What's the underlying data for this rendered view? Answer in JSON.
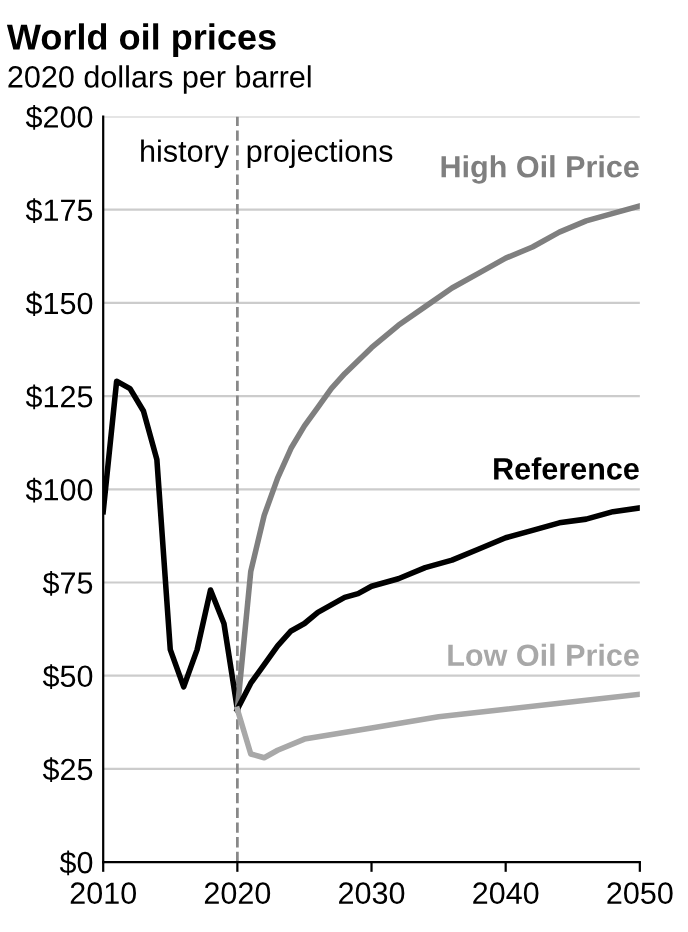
{
  "chart_data": {
    "type": "line",
    "title": "World oil prices",
    "subtitle": "2020 dollars per barrel",
    "series": [
      {
        "color": "#000000",
        "x": [
          2010,
          2011,
          2012,
          2013,
          2014,
          2015,
          2016,
          2017,
          2018,
          2019,
          2020
        ],
        "values": [
          94,
          129,
          127,
          121,
          108,
          57,
          47,
          57,
          73,
          64,
          41
        ]
      },
      {
        "name": "High Oil Price",
        "color": "#7f7f7f",
        "x": [
          2020,
          2021,
          2022,
          2023,
          2024,
          2025,
          2026,
          2027,
          2028,
          2030,
          2032,
          2034,
          2036,
          2038,
          2040,
          2042,
          2044,
          2046,
          2048,
          2050
        ],
        "values": [
          41,
          78,
          93,
          103,
          111,
          117,
          122,
          127,
          131,
          138,
          144,
          149,
          154,
          158,
          162,
          165,
          169,
          172,
          174,
          176
        ]
      },
      {
        "name": "Reference",
        "color": "#000000",
        "x": [
          2020,
          2021,
          2022,
          2023,
          2024,
          2025,
          2026,
          2027,
          2028,
          2029,
          2030,
          2032,
          2034,
          2036,
          2038,
          2040,
          2042,
          2044,
          2046,
          2048,
          2050
        ],
        "values": [
          41,
          48,
          53,
          58,
          62,
          64,
          67,
          69,
          71,
          72,
          74,
          76,
          79,
          81,
          84,
          87,
          89,
          91,
          92,
          94,
          95
        ]
      },
      {
        "name": "Low Oil Price",
        "color": "#a8a8a8",
        "x": [
          2020,
          2021,
          2022,
          2023,
          2025,
          2030,
          2035,
          2040,
          2045,
          2050
        ],
        "values": [
          41,
          29,
          28,
          30,
          33,
          36,
          39,
          41,
          43,
          45
        ]
      }
    ],
    "xlim": [
      2010,
      2050
    ],
    "xticks": [
      2010,
      2020,
      2030,
      2040,
      2050
    ],
    "ylim": [
      0,
      200
    ],
    "yticks": [
      {
        "value": 0,
        "label": "$0"
      },
      {
        "value": 25,
        "label": "$25"
      },
      {
        "value": 50,
        "label": "$50"
      },
      {
        "value": 75,
        "label": "$75"
      },
      {
        "value": 100,
        "label": "$100"
      },
      {
        "value": 125,
        "label": "$125"
      },
      {
        "value": 150,
        "label": "$150"
      },
      {
        "value": 175,
        "label": "$175"
      },
      {
        "value": 200,
        "label": "$200"
      }
    ],
    "grid": "y",
    "legend": false,
    "ref_lines": [
      {
        "axis": "x",
        "value": 2020,
        "color": "#888888",
        "line_style": "dashed"
      }
    ],
    "annotations": [
      {
        "text": "history",
        "x": 2020,
        "y": 190
      },
      {
        "text": "projections",
        "x": 2020,
        "y": 190
      }
    ]
  }
}
